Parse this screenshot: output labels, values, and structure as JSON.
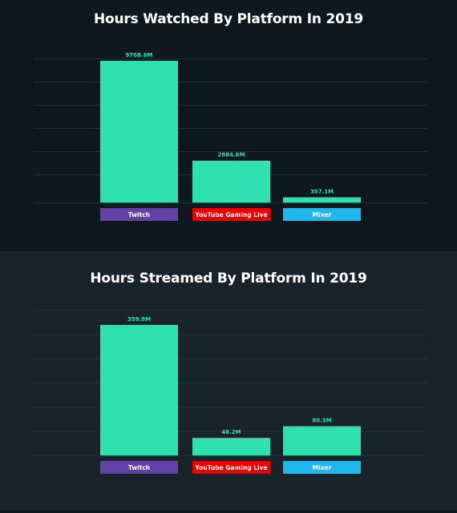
{
  "colors": {
    "bar": "#2fe0b1",
    "value_label": "#2fe0b1",
    "grid": "#223038",
    "twitch": "#6441a5",
    "youtube": "#ee0000",
    "mixer": "#1fb7ee"
  },
  "chart_data": [
    {
      "type": "bar",
      "title": "Hours Watched By Platform In 2019",
      "categories": [
        "Twitch",
        "YouTube Gaming Live",
        "Mixer"
      ],
      "values": [
        9768.6,
        2884.6,
        357.1
      ],
      "value_labels": [
        "9768.6M",
        "2884.6M",
        "357.1M"
      ],
      "category_colors": [
        "#6441a5",
        "#ee0000",
        "#1fb7ee"
      ],
      "ylim": [
        0,
        9768.6
      ],
      "grid": true,
      "legend": "none"
    },
    {
      "type": "bar",
      "title": "Hours Streamed By Platform In 2019",
      "categories": [
        "Twitch",
        "YouTube Gaming Live",
        "Mixer"
      ],
      "values": [
        359.8,
        48.2,
        80.3
      ],
      "value_labels": [
        "359.8M",
        "48.2M",
        "80.3M"
      ],
      "category_colors": [
        "#6441a5",
        "#ee0000",
        "#1fb7ee"
      ],
      "ylim": [
        0,
        359.8
      ],
      "grid": true,
      "legend": "none"
    }
  ]
}
